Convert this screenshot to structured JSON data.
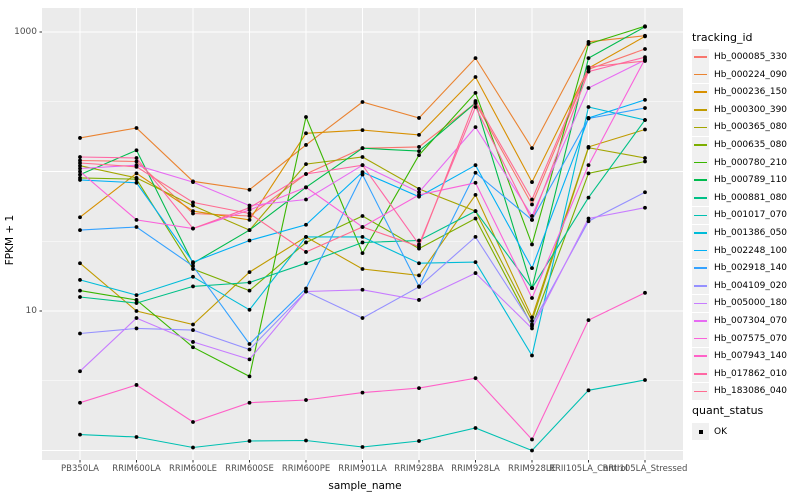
{
  "figure": {
    "x_title": "sample_name",
    "y_title": "FPKM + 1",
    "legend_title": "tracking_id",
    "legend2_title": "quant_status",
    "legend2_item": "OK"
  },
  "chart_data": {
    "type": "line",
    "title": "",
    "xlabel": "sample_name",
    "ylabel": "FPKM + 1",
    "y_scale": "log10",
    "y_tick_labels": [
      "1000",
      "10"
    ],
    "y_tick_values": [
      1000,
      10
    ],
    "y_gridlines_major": [
      1,
      10,
      100,
      1000
    ],
    "y_gridlines_minor": [
      3.162,
      31.62,
      316.2
    ],
    "ylim": [
      0.85,
      1480
    ],
    "grid": true,
    "legend_position": "right",
    "panel_bg": "#EBEBEB",
    "grid_color": "#FFFFFF",
    "point_color": "#000000",
    "tick_text_color": "#4d4d4d",
    "categories": [
      "PB350LA",
      "RRIM600LA",
      "RRIM600LE",
      "RRIM600SE",
      "RRIM600PE",
      "RRIM901LA",
      "RRIM928BA",
      "RRIM928LA",
      "RRIM928LE",
      "RRII105LA_Control",
      "RRII105LA_Stressed"
    ],
    "series": [
      {
        "name": "Hb_000085_330",
        "color": "#F8766D",
        "values": [
          120,
          118,
          50,
          48,
          96,
          147,
          150,
          310,
          58,
          540,
          755
        ]
      },
      {
        "name": "Hb_000224_090",
        "color": "#EA8331",
        "values": [
          174,
          205,
          85,
          74,
          155,
          315,
          242,
          650,
          147,
          850,
          940
        ]
      },
      {
        "name": "Hb_000236_150",
        "color": "#D89000",
        "values": [
          47,
          97,
          52,
          45,
          188,
          198,
          183,
          476,
          84,
          550,
          930
        ]
      },
      {
        "name": "Hb_000300_390",
        "color": "#C09B00",
        "values": [
          22,
          10,
          8,
          19,
          34,
          20,
          18,
          68,
          9,
          150,
          200
        ]
      },
      {
        "name": "Hb_000365_080",
        "color": "#A3A500",
        "values": [
          110,
          90,
          57,
          38,
          113,
          127,
          75,
          52,
          8.5,
          148,
          125
        ]
      },
      {
        "name": "Hb_000635_080",
        "color": "#7CAE00",
        "values": [
          90,
          88,
          20,
          14,
          31,
          48,
          28,
          46,
          7.8,
          97,
          118
        ]
      },
      {
        "name": "Hb_000780_210",
        "color": "#39B600",
        "values": [
          14,
          12,
          5.5,
          3.4,
          246,
          26,
          131,
          366,
          30,
          820,
          1100
        ]
      },
      {
        "name": "Hb_000789_110",
        "color": "#00BB4E",
        "values": [
          95,
          142,
          22,
          38,
          77,
          147,
          140,
          310,
          14.6,
          650,
          1090
        ]
      },
      {
        "name": "Hb_000881_080",
        "color": "#00C087",
        "values": [
          12.6,
          11.4,
          15,
          16,
          22,
          31,
          32,
          52,
          14.6,
          65,
          234
        ]
      },
      {
        "name": "Hb_001017_070",
        "color": "#00C0B2",
        "values": [
          1.3,
          1.25,
          1.05,
          1.17,
          1.18,
          1.06,
          1.17,
          1.45,
          1.0,
          2.7,
          3.2
        ]
      },
      {
        "name": "Hb_001386_050",
        "color": "#00BCD8",
        "values": [
          16.7,
          13,
          17.6,
          10.2,
          34,
          34,
          22,
          22.4,
          4.8,
          290,
          234
        ]
      },
      {
        "name": "Hb_002248_100",
        "color": "#00B0F6",
        "values": [
          87,
          83,
          22.4,
          32,
          41.5,
          99,
          66,
          111,
          20.3,
          242,
          326
        ]
      },
      {
        "name": "Hb_002918_140",
        "color": "#35A2FF",
        "values": [
          38,
          40,
          21,
          5.8,
          14.5,
          95,
          15,
          98,
          45,
          240,
          285
        ]
      },
      {
        "name": "Hb_004109_020",
        "color": "#9590FF",
        "values": [
          6.9,
          7.5,
          7.3,
          5.3,
          13.8,
          8.9,
          14.9,
          34,
          8,
          44,
          71
        ]
      },
      {
        "name": "Hb_005000_180",
        "color": "#C77CFF",
        "values": [
          3.7,
          8.9,
          6.0,
          4.5,
          13.8,
          14.2,
          12,
          18.7,
          7.5,
          46,
          55
        ]
      },
      {
        "name": "Hb_007304_070",
        "color": "#E76BF3",
        "values": [
          105,
          111,
          84,
          57,
          63,
          111,
          71,
          208,
          48,
          397,
          630
        ]
      },
      {
        "name": "Hb_007575_070",
        "color": "#FA62DB",
        "values": [
          100,
          45,
          39,
          53,
          77,
          40,
          68,
          83,
          12.4,
          111,
          640
        ]
      },
      {
        "name": "Hb_007943_140",
        "color": "#FF61C8",
        "values": [
          2.2,
          2.95,
          1.6,
          2.2,
          2.3,
          2.6,
          2.8,
          3.3,
          1.2,
          8.6,
          13.5
        ]
      },
      {
        "name": "Hb_017862_010",
        "color": "#FF67A4",
        "values": [
          127,
          125,
          39,
          55,
          96,
          111,
          30,
          290,
          45,
          520,
          660
        ]
      },
      {
        "name": "Hb_183086_040",
        "color": "#FF6C91",
        "values": [
          115,
          108,
          60,
          50,
          26.5,
          40,
          29,
          320,
          63,
          560,
          620
        ]
      }
    ]
  }
}
